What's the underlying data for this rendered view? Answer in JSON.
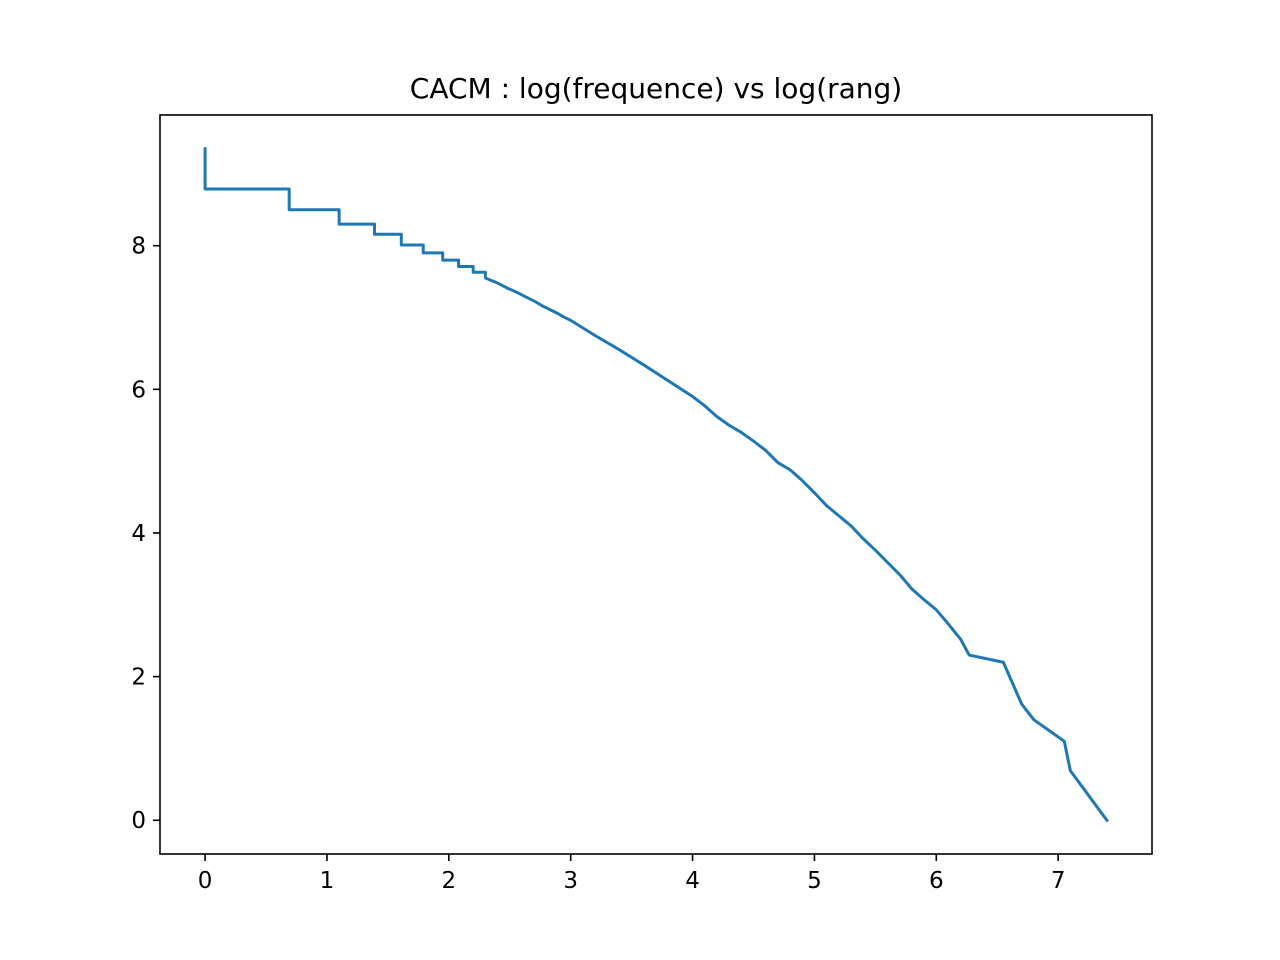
{
  "chart_data": {
    "type": "line",
    "title": "CACM : log(frequence) vs log(rang)",
    "xlabel": "",
    "ylabel": "",
    "xlim": [
      -0.37,
      7.77
    ],
    "ylim": [
      -0.47,
      9.82
    ],
    "xticks": [
      0,
      1,
      2,
      3,
      4,
      5,
      6,
      7
    ],
    "yticks": [
      0,
      2,
      4,
      6,
      8
    ],
    "xtick_labels": [
      "0",
      "1",
      "2",
      "3",
      "4",
      "5",
      "6",
      "7"
    ],
    "ytick_labels": [
      "0",
      "2",
      "4",
      "6",
      "8"
    ],
    "grid": false,
    "legend": "none",
    "colors": {
      "line": "#1f77b4",
      "axes": "#000000",
      "background": "#ffffff"
    },
    "series": [
      {
        "x": [
          0,
          0,
          0.69,
          0.69,
          1.1,
          1.1,
          1.39,
          1.39,
          1.61,
          1.61,
          1.79,
          1.79,
          1.95,
          1.95,
          2.08,
          2.08,
          2.2,
          2.2,
          2.3,
          2.3,
          2.4,
          2.48,
          2.56,
          2.64,
          2.71,
          2.77,
          2.83,
          2.89,
          2.94,
          3.0,
          3.2,
          3.4,
          3.6,
          3.8,
          4.0,
          4.1,
          4.2,
          4.3,
          4.4,
          4.5,
          4.6,
          4.7,
          4.8,
          4.9,
          5.0,
          5.1,
          5.2,
          5.3,
          5.4,
          5.5,
          5.6,
          5.7,
          5.8,
          5.9,
          6.0,
          6.1,
          6.2,
          6.27,
          6.55,
          6.7,
          6.8,
          7.05,
          7.1,
          7.4
        ],
        "y": [
          9.35,
          8.79,
          8.79,
          8.5,
          8.5,
          8.3,
          8.3,
          8.16,
          8.16,
          8.01,
          8.01,
          7.9,
          7.9,
          7.8,
          7.8,
          7.71,
          7.71,
          7.63,
          7.63,
          7.55,
          7.48,
          7.41,
          7.35,
          7.28,
          7.22,
          7.16,
          7.11,
          7.06,
          7.01,
          6.96,
          6.75,
          6.55,
          6.34,
          6.12,
          5.9,
          5.77,
          5.62,
          5.5,
          5.4,
          5.28,
          5.15,
          4.98,
          4.88,
          4.73,
          4.56,
          4.38,
          4.24,
          4.1,
          3.92,
          3.76,
          3.59,
          3.42,
          3.22,
          3.07,
          2.93,
          2.73,
          2.52,
          2.3,
          2.2,
          1.62,
          1.4,
          1.1,
          0.69,
          0.0
        ]
      }
    ]
  }
}
